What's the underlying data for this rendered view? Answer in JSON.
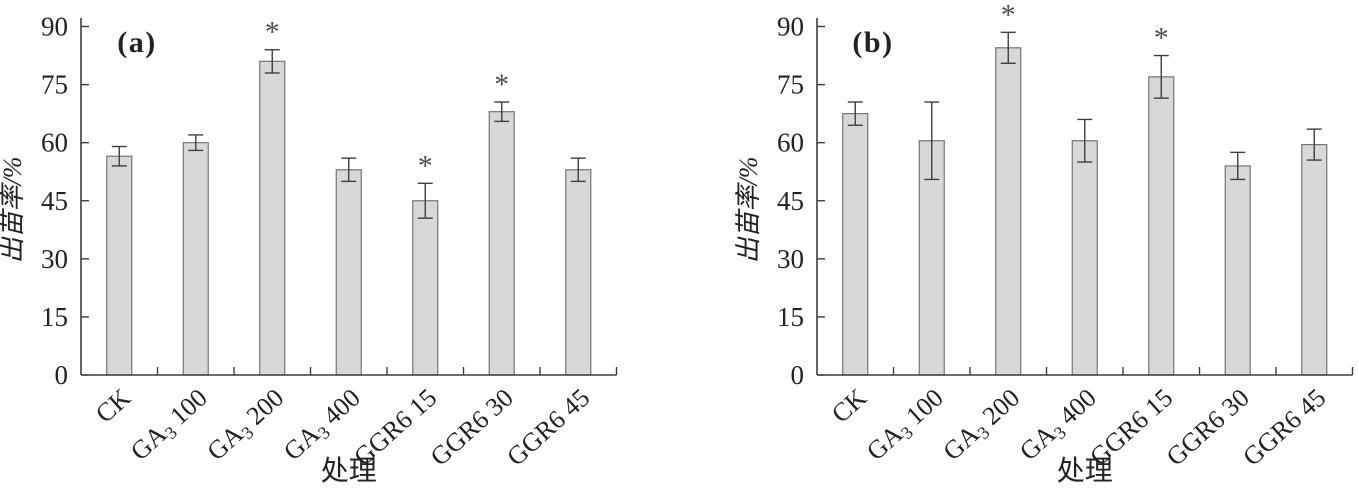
{
  "figure": {
    "background": "#ffffff",
    "style": {
      "bar_fill": "#d8d8d8",
      "bar_stroke": "#757575",
      "axis_color": "#3d3d3d",
      "text_color": "#222222",
      "error_color": "#3f3f3f",
      "asterisk_color": "#4d4d4d",
      "significance_marker": "*"
    }
  },
  "chart_data": [
    {
      "type": "bar",
      "panel_label": "(a)",
      "xlabel": "处理",
      "ylabel": "出苗率/%",
      "ylim": [
        0,
        90
      ],
      "yticks": [
        0,
        15,
        30,
        45,
        60,
        75,
        90
      ],
      "grid": false,
      "legend": null,
      "categories": [
        "CK",
        "GA3 100",
        "GA3 200",
        "GA3 400",
        "GGR6 15",
        "GGR6 30",
        "GGR6 45"
      ],
      "category_parts": [
        {
          "pre": "CK",
          "sub": "",
          "post": ""
        },
        {
          "pre": "GA",
          "sub": "3",
          "post": " 100"
        },
        {
          "pre": "GA",
          "sub": "3",
          "post": " 200"
        },
        {
          "pre": "GA",
          "sub": "3",
          "post": " 400"
        },
        {
          "pre": "GGR6 15",
          "sub": "",
          "post": ""
        },
        {
          "pre": "GGR6 30",
          "sub": "",
          "post": ""
        },
        {
          "pre": "GGR6 45",
          "sub": "",
          "post": ""
        }
      ],
      "values": [
        56.5,
        60,
        81,
        53,
        45,
        68,
        53
      ],
      "errors": [
        2.5,
        2,
        3,
        3,
        4.5,
        2.5,
        3
      ],
      "significant": [
        false,
        false,
        true,
        false,
        true,
        true,
        false
      ]
    },
    {
      "type": "bar",
      "panel_label": "(b)",
      "xlabel": "处理",
      "ylabel": "出苗率/%",
      "ylim": [
        0,
        90
      ],
      "yticks": [
        0,
        15,
        30,
        45,
        60,
        75,
        90
      ],
      "grid": false,
      "legend": null,
      "categories": [
        "CK",
        "GA3 100",
        "GA3 200",
        "GA3 400",
        "GGR6 15",
        "GGR6 30",
        "GGR6 45"
      ],
      "category_parts": [
        {
          "pre": "CK",
          "sub": "",
          "post": ""
        },
        {
          "pre": "GA",
          "sub": "3",
          "post": " 100"
        },
        {
          "pre": "GA",
          "sub": "3",
          "post": " 200"
        },
        {
          "pre": "GA",
          "sub": "3",
          "post": " 400"
        },
        {
          "pre": "GGR6 15",
          "sub": "",
          "post": ""
        },
        {
          "pre": "GGR6 30",
          "sub": "",
          "post": ""
        },
        {
          "pre": "GGR6 45",
          "sub": "",
          "post": ""
        }
      ],
      "values": [
        67.5,
        60.5,
        84.5,
        60.5,
        77,
        54,
        59.5
      ],
      "errors": [
        3,
        10,
        4,
        5.5,
        5.5,
        3.5,
        4
      ],
      "significant": [
        false,
        false,
        true,
        false,
        true,
        false,
        false
      ]
    }
  ]
}
